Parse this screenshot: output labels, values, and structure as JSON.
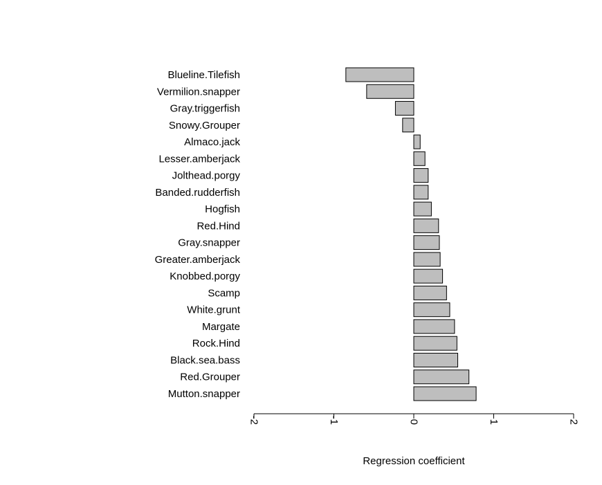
{
  "chart_data": {
    "type": "bar",
    "orientation": "horizontal",
    "title": "",
    "xlabel": "Regression coefficient",
    "ylabel": "",
    "xlim": [
      -2,
      2
    ],
    "xticks": [
      -2,
      -1,
      0,
      1,
      2
    ],
    "xtick_labels": [
      "-2",
      "-1",
      "0",
      "1",
      "2"
    ],
    "grid": false,
    "legend": "none",
    "bar_color": "#bebebe",
    "categories": [
      "Blueline.Tilefish",
      "Vermilion.snapper",
      "Gray.triggerfish",
      "Snowy.Grouper",
      "Almaco.jack",
      "Lesser.amberjack",
      "Jolthead.porgy",
      "Banded.rudderfish",
      "Hogfish",
      "Red.Hind",
      "Gray.snapper",
      "Greater.amberjack",
      "Knobbed.porgy",
      "Scamp",
      "White.grunt",
      "Margate",
      "Rock.Hind",
      "Black.sea.bass",
      "Red.Grouper",
      "Mutton.snapper"
    ],
    "values": [
      -0.85,
      -0.59,
      -0.23,
      -0.14,
      0.08,
      0.14,
      0.18,
      0.18,
      0.22,
      0.31,
      0.32,
      0.33,
      0.36,
      0.41,
      0.45,
      0.51,
      0.54,
      0.55,
      0.69,
      0.78
    ]
  }
}
